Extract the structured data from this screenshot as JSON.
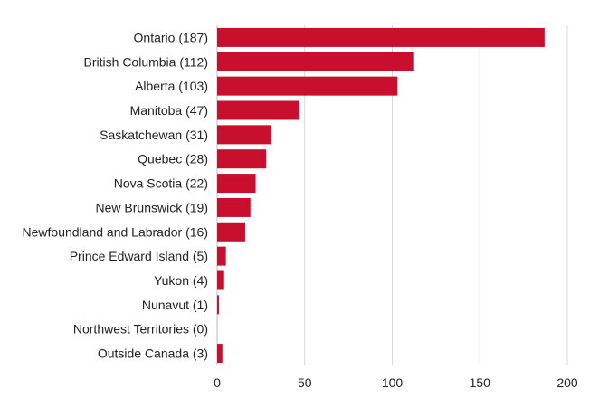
{
  "chart_data": {
    "type": "bar",
    "orientation": "horizontal",
    "categories": [
      "Ontario (187)",
      "British Columbia (112)",
      "Alberta (103)",
      "Manitoba (47)",
      "Saskatchewan (31)",
      "Quebec (28)",
      "Nova Scotia (22)",
      "New Brunswick (19)",
      "Newfoundland and Labrador (16)",
      "Prince Edward Island (5)",
      "Yukon (4)",
      "Nunavut (1)",
      "Northwest Territories (0)",
      "Outside Canada (3)"
    ],
    "values": [
      187,
      112,
      103,
      47,
      31,
      28,
      22,
      19,
      16,
      5,
      4,
      1,
      0,
      3
    ],
    "xlim": [
      0,
      200
    ],
    "xticks": [
      0,
      50,
      100,
      150,
      200
    ],
    "grid": true,
    "bar_color": "#c8102e"
  }
}
